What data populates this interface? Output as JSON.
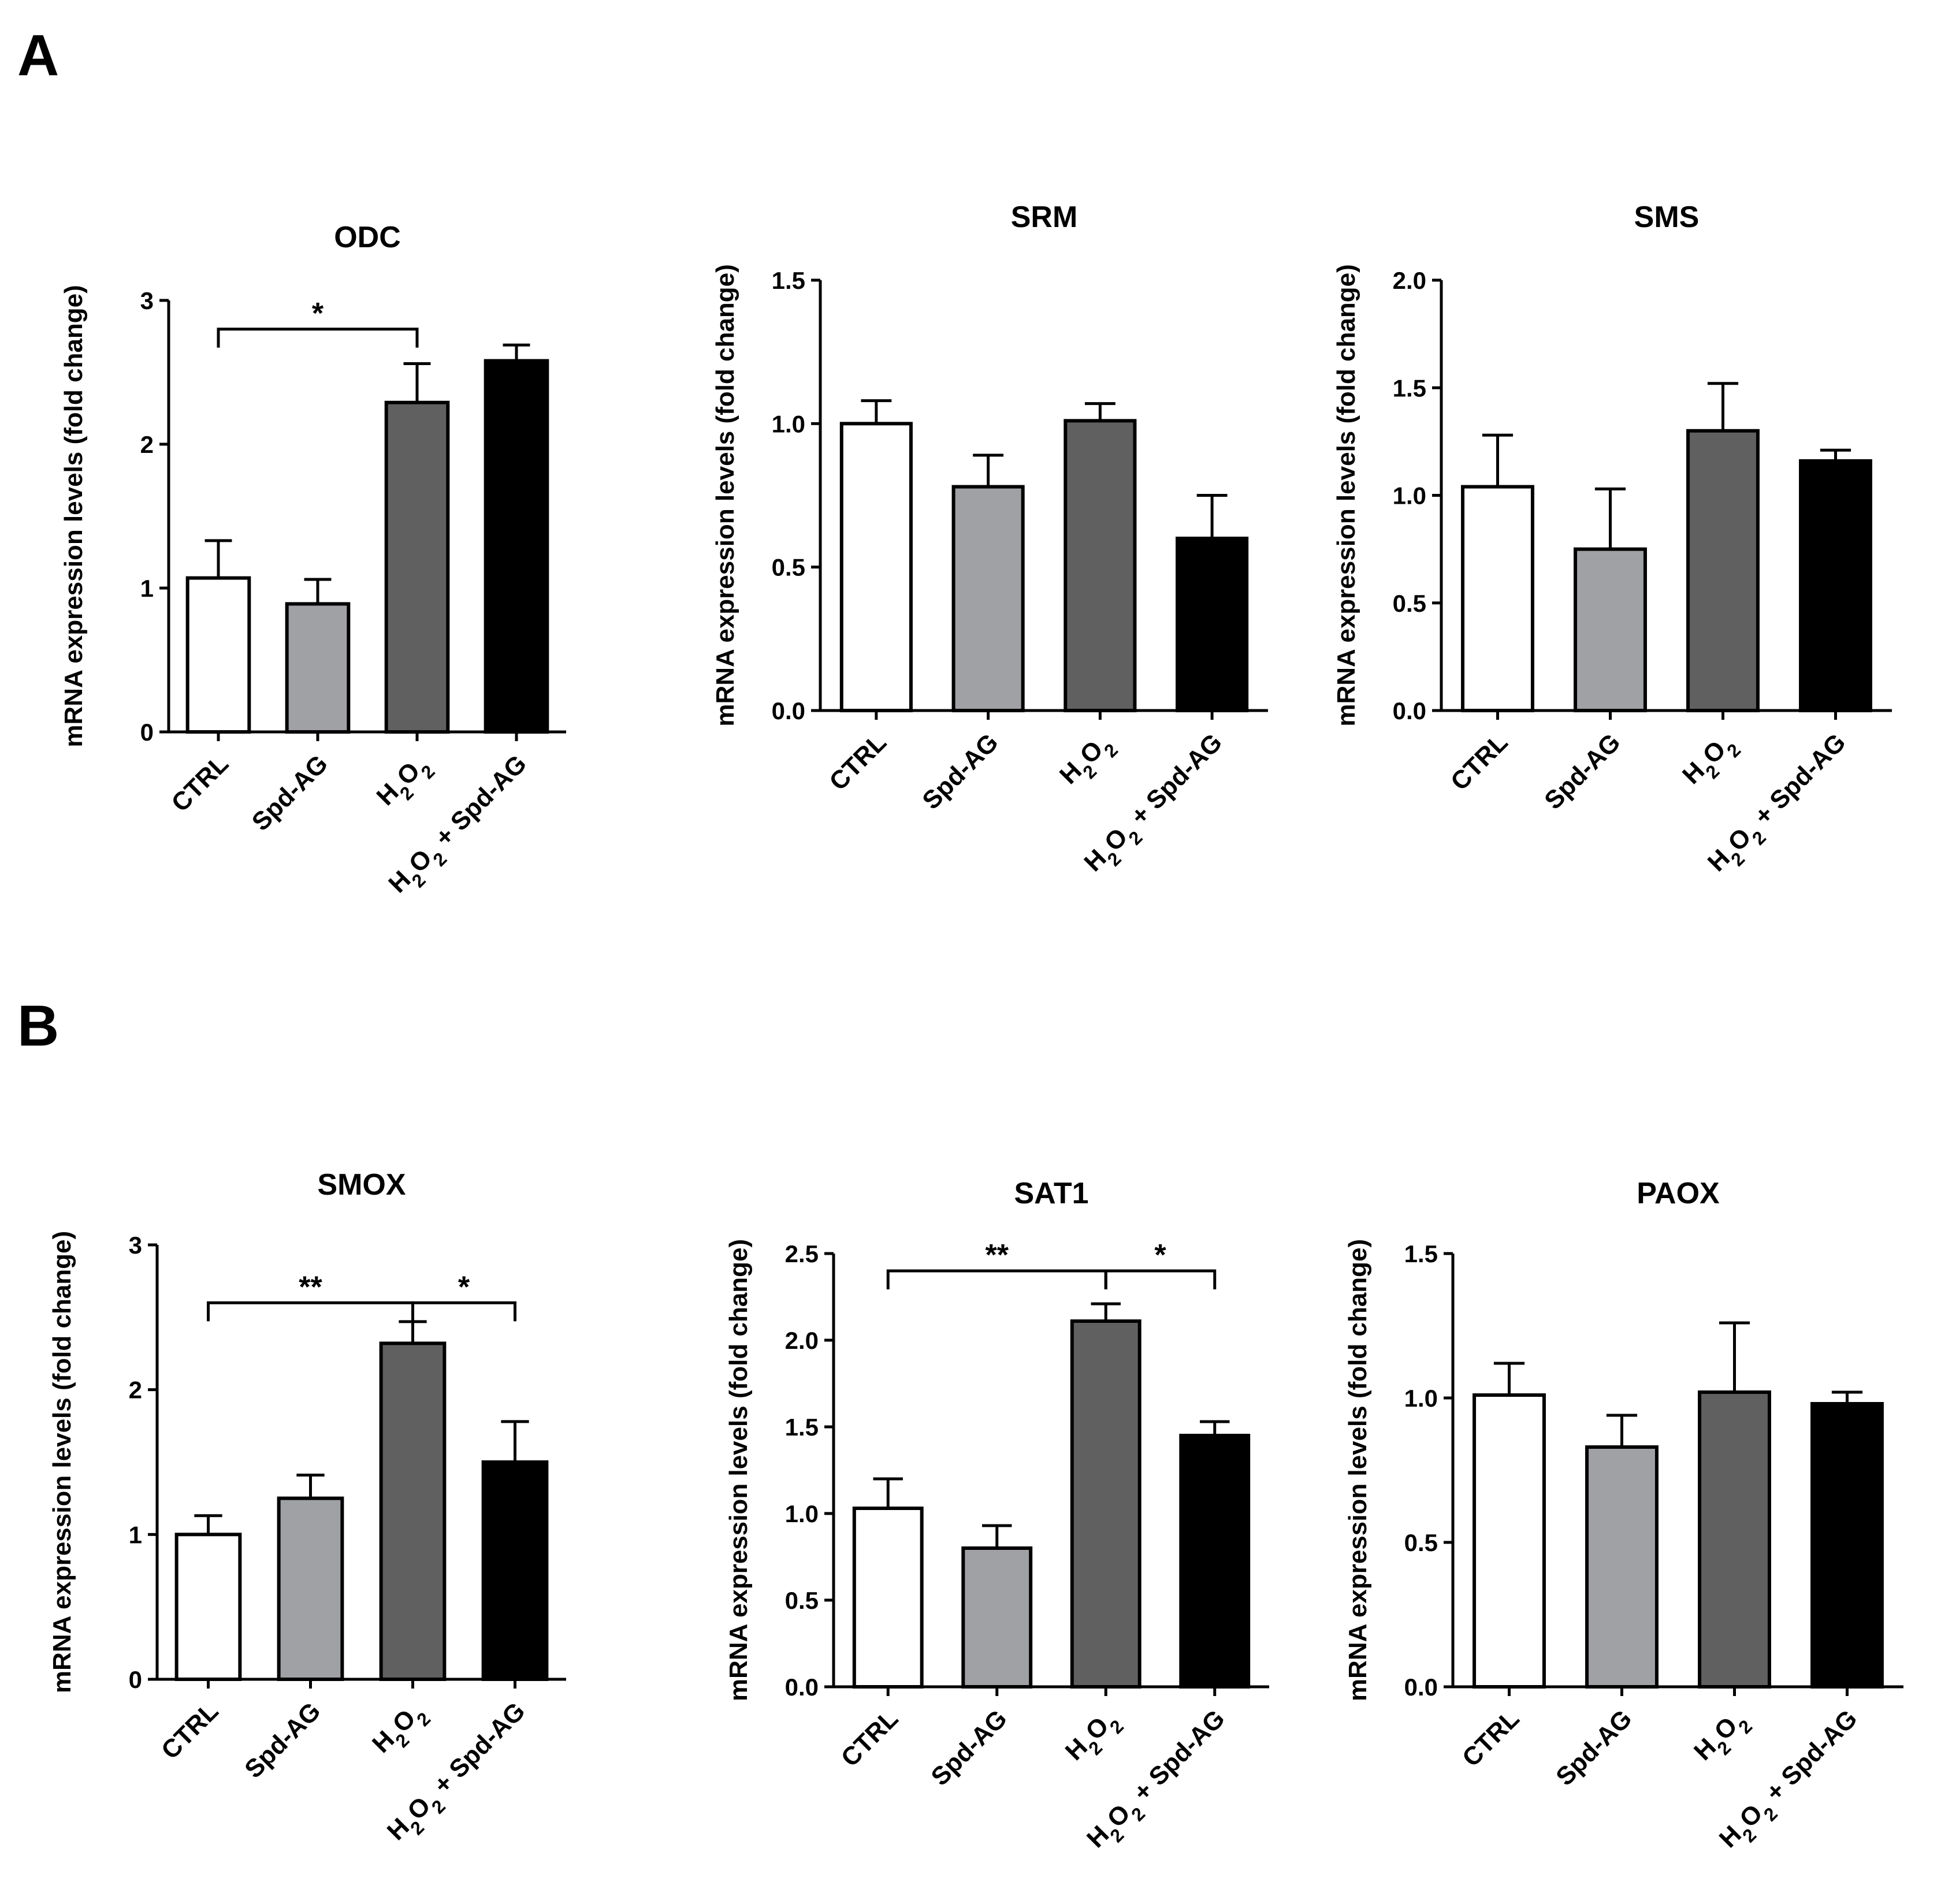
{
  "panels": [
    {
      "label": "A"
    },
    {
      "label": "B"
    }
  ],
  "chart_data": [
    {
      "type": "bar",
      "panel": "A",
      "title": "ODC",
      "ylabel": "mRNA expression levels (fold change)",
      "categories": [
        "CTRL",
        "Spd-AG",
        "H2O2",
        "H2O2 + Spd-AG"
      ],
      "values": [
        1.07,
        0.89,
        2.29,
        2.58
      ],
      "errors": [
        0.26,
        0.17,
        0.27,
        0.11
      ],
      "colors": [
        "#ffffff",
        "#a0a1a4",
        "#606060",
        "#000000"
      ],
      "ylim": [
        0,
        3
      ],
      "yticks": [
        "0",
        "1",
        "2",
        "3"
      ],
      "significance": [
        {
          "from": 0,
          "to": 2,
          "label": "*",
          "y": 2.8
        }
      ]
    },
    {
      "type": "bar",
      "panel": "A",
      "title": "SRM",
      "ylabel": "mRNA expression levels (fold change)",
      "categories": [
        "CTRL",
        "Spd-AG",
        "H2O2",
        "H2O2 + Spd-AG"
      ],
      "values": [
        1.0,
        0.78,
        1.01,
        0.6
      ],
      "errors": [
        0.08,
        0.11,
        0.06,
        0.15
      ],
      "colors": [
        "#ffffff",
        "#a0a1a4",
        "#606060",
        "#000000"
      ],
      "ylim": [
        0,
        1.5
      ],
      "yticks": [
        "0.0",
        "0.5",
        "1.0",
        "1.5"
      ],
      "significance": []
    },
    {
      "type": "bar",
      "panel": "A",
      "title": "SMS",
      "ylabel": "mRNA expression levels (fold change)",
      "categories": [
        "CTRL",
        "Spd-AG",
        "H2O2",
        "H2O2 + Spd-AG"
      ],
      "values": [
        1.04,
        0.75,
        1.3,
        1.16
      ],
      "errors": [
        0.24,
        0.28,
        0.22,
        0.05
      ],
      "colors": [
        "#ffffff",
        "#a0a1a4",
        "#606060",
        "#000000"
      ],
      "ylim": [
        0,
        2.0
      ],
      "yticks": [
        "0.0",
        "0.5",
        "1.0",
        "1.5",
        "2.0"
      ],
      "significance": []
    },
    {
      "type": "bar",
      "panel": "B",
      "title": "SMOX",
      "ylabel": "mRNA expression levels (fold change)",
      "categories": [
        "CTRL",
        "Spd-AG",
        "H2O2",
        "H2O2 + Spd-AG"
      ],
      "values": [
        1.0,
        1.25,
        2.32,
        1.5
      ],
      "errors": [
        0.13,
        0.16,
        0.15,
        0.28
      ],
      "colors": [
        "#ffffff",
        "#a0a1a4",
        "#606060",
        "#000000"
      ],
      "ylim": [
        0,
        3
      ],
      "yticks": [
        "0",
        "1",
        "2",
        "3"
      ],
      "significance": [
        {
          "from": 0,
          "to": 2,
          "label": "**",
          "y": 2.6
        },
        {
          "from": 2,
          "to": 3,
          "label": "*",
          "y": 2.6
        }
      ]
    },
    {
      "type": "bar",
      "panel": "B",
      "title": "SAT1",
      "ylabel": "mRNA expression levels (fold change)",
      "categories": [
        "CTRL",
        "Spd-AG",
        "H2O2",
        "H2O2 + Spd-AG"
      ],
      "values": [
        1.03,
        0.8,
        2.11,
        1.45
      ],
      "errors": [
        0.17,
        0.13,
        0.1,
        0.08
      ],
      "colors": [
        "#ffffff",
        "#a0a1a4",
        "#606060",
        "#000000"
      ],
      "ylim": [
        0,
        2.5
      ],
      "yticks": [
        "0.0",
        "0.5",
        "1.0",
        "1.5",
        "2.0",
        "2.5"
      ],
      "significance": [
        {
          "from": 0,
          "to": 2,
          "label": "**",
          "y": 2.4
        },
        {
          "from": 2,
          "to": 3,
          "label": "*",
          "y": 2.4
        }
      ]
    },
    {
      "type": "bar",
      "panel": "B",
      "title": "PAOX",
      "ylabel": "mRNA expression levels (fold change)",
      "categories": [
        "CTRL",
        "Spd-AG",
        "H2O2",
        "H2O2 + Spd-AG"
      ],
      "values": [
        1.01,
        0.83,
        1.02,
        0.98
      ],
      "errors": [
        0.11,
        0.11,
        0.24,
        0.04
      ],
      "colors": [
        "#ffffff",
        "#a0a1a4",
        "#606060",
        "#000000"
      ],
      "ylim": [
        0,
        1.5
      ],
      "yticks": [
        "0.0",
        "0.5",
        "1.0",
        "1.5"
      ],
      "significance": []
    }
  ]
}
